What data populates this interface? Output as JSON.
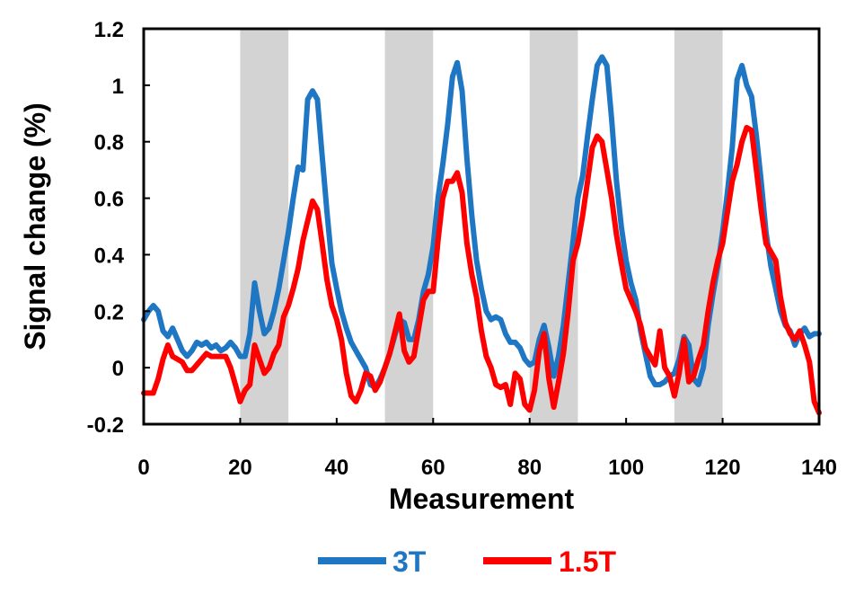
{
  "chart_data": {
    "type": "line",
    "title": "",
    "xlabel": "Measurement",
    "ylabel": "Signal change (%)",
    "xlim": [
      0,
      140
    ],
    "ylim": [
      -0.2,
      1.2
    ],
    "x_ticks": [
      0,
      20,
      40,
      60,
      80,
      100,
      120,
      140
    ],
    "y_ticks": [
      -0.2,
      0,
      0.2,
      0.4,
      0.6,
      0.8,
      1,
      1.2
    ],
    "y_tick_labels": [
      "-0.2",
      "0",
      "0.2",
      "0.4",
      "0.6",
      "0.8",
      "1",
      "1.2"
    ],
    "x_tick_labels": [
      "0",
      "20",
      "40",
      "60",
      "80",
      "100",
      "120",
      "140"
    ],
    "grid": false,
    "legend_position": "bottom-center",
    "shaded_blocks": [
      [
        20,
        30
      ],
      [
        50,
        60
      ],
      [
        80,
        90
      ],
      [
        110,
        120
      ]
    ],
    "shade_color": "#d3d3d3",
    "series": [
      {
        "name": "3T",
        "color": "#1f77c4",
        "points": [
          [
            0,
            0.17
          ],
          [
            1,
            0.2
          ],
          [
            2,
            0.22
          ],
          [
            3,
            0.2
          ],
          [
            4,
            0.13
          ],
          [
            5,
            0.11
          ],
          [
            6,
            0.14
          ],
          [
            7,
            0.1
          ],
          [
            8,
            0.06
          ],
          [
            9,
            0.04
          ],
          [
            10,
            0.06
          ],
          [
            11,
            0.09
          ],
          [
            12,
            0.08
          ],
          [
            13,
            0.09
          ],
          [
            14,
            0.07
          ],
          [
            15,
            0.08
          ],
          [
            16,
            0.06
          ],
          [
            17,
            0.07
          ],
          [
            18,
            0.09
          ],
          [
            19,
            0.07
          ],
          [
            20,
            0.04
          ],
          [
            21,
            0.04
          ],
          [
            22,
            0.12
          ],
          [
            23,
            0.3
          ],
          [
            24,
            0.2
          ],
          [
            25,
            0.12
          ],
          [
            26,
            0.14
          ],
          [
            27,
            0.2
          ],
          [
            28,
            0.28
          ],
          [
            29,
            0.38
          ],
          [
            30,
            0.48
          ],
          [
            31,
            0.6
          ],
          [
            32,
            0.71
          ],
          [
            33,
            0.7
          ],
          [
            34,
            0.95
          ],
          [
            35,
            0.98
          ],
          [
            36,
            0.95
          ],
          [
            37,
            0.75
          ],
          [
            38,
            0.55
          ],
          [
            39,
            0.37
          ],
          [
            40,
            0.28
          ],
          [
            41,
            0.2
          ],
          [
            42,
            0.14
          ],
          [
            43,
            0.09
          ],
          [
            44,
            0.06
          ],
          [
            45,
            0.03
          ],
          [
            46,
            0.0
          ],
          [
            47,
            -0.06
          ],
          [
            48,
            -0.07
          ],
          [
            49,
            -0.04
          ],
          [
            50,
            0.0
          ],
          [
            51,
            0.05
          ],
          [
            52,
            0.11
          ],
          [
            53,
            0.17
          ],
          [
            54,
            0.16
          ],
          [
            55,
            0.1
          ],
          [
            56,
            0.1
          ],
          [
            57,
            0.17
          ],
          [
            58,
            0.27
          ],
          [
            59,
            0.33
          ],
          [
            60,
            0.43
          ],
          [
            61,
            0.6
          ],
          [
            62,
            0.72
          ],
          [
            63,
            0.86
          ],
          [
            64,
            1.03
          ],
          [
            65,
            1.08
          ],
          [
            66,
            0.98
          ],
          [
            67,
            0.74
          ],
          [
            68,
            0.54
          ],
          [
            69,
            0.38
          ],
          [
            70,
            0.28
          ],
          [
            71,
            0.2
          ],
          [
            72,
            0.17
          ],
          [
            73,
            0.18
          ],
          [
            74,
            0.17
          ],
          [
            75,
            0.12
          ],
          [
            76,
            0.09
          ],
          [
            77,
            0.09
          ],
          [
            78,
            0.07
          ],
          [
            79,
            0.03
          ],
          [
            80,
            0.01
          ],
          [
            81,
            0.02
          ],
          [
            82,
            0.1
          ],
          [
            83,
            0.15
          ],
          [
            84,
            0.07
          ],
          [
            85,
            -0.03
          ],
          [
            86,
            0.04
          ],
          [
            87,
            0.15
          ],
          [
            88,
            0.3
          ],
          [
            89,
            0.45
          ],
          [
            90,
            0.6
          ],
          [
            91,
            0.68
          ],
          [
            92,
            0.82
          ],
          [
            93,
            0.95
          ],
          [
            94,
            1.07
          ],
          [
            95,
            1.1
          ],
          [
            96,
            1.07
          ],
          [
            97,
            0.88
          ],
          [
            98,
            0.66
          ],
          [
            99,
            0.5
          ],
          [
            100,
            0.38
          ],
          [
            101,
            0.3
          ],
          [
            102,
            0.24
          ],
          [
            103,
            0.13
          ],
          [
            104,
            0.05
          ],
          [
            105,
            -0.03
          ],
          [
            106,
            -0.06
          ],
          [
            107,
            -0.06
          ],
          [
            108,
            -0.05
          ],
          [
            109,
            -0.03
          ],
          [
            110,
            -0.02
          ],
          [
            111,
            0.03
          ],
          [
            112,
            0.11
          ],
          [
            113,
            0.08
          ],
          [
            114,
            -0.04
          ],
          [
            115,
            -0.06
          ],
          [
            116,
            0.0
          ],
          [
            117,
            0.15
          ],
          [
            118,
            0.26
          ],
          [
            119,
            0.36
          ],
          [
            120,
            0.48
          ],
          [
            121,
            0.62
          ],
          [
            122,
            0.78
          ],
          [
            123,
            1.02
          ],
          [
            124,
            1.07
          ],
          [
            125,
            1.0
          ],
          [
            126,
            0.96
          ],
          [
            127,
            0.82
          ],
          [
            128,
            0.66
          ],
          [
            129,
            0.48
          ],
          [
            130,
            0.36
          ],
          [
            131,
            0.28
          ],
          [
            132,
            0.2
          ],
          [
            133,
            0.15
          ],
          [
            134,
            0.13
          ],
          [
            135,
            0.08
          ],
          [
            136,
            0.12
          ],
          [
            137,
            0.14
          ],
          [
            138,
            0.11
          ],
          [
            139,
            0.12
          ],
          [
            140,
            0.12
          ]
        ]
      },
      {
        "name": "1.5T",
        "color": "#ff0000",
        "points": [
          [
            0,
            -0.09
          ],
          [
            1,
            -0.09
          ],
          [
            2,
            -0.09
          ],
          [
            3,
            -0.04
          ],
          [
            4,
            0.03
          ],
          [
            5,
            0.08
          ],
          [
            6,
            0.04
          ],
          [
            7,
            0.03
          ],
          [
            8,
            0.02
          ],
          [
            9,
            -0.01
          ],
          [
            10,
            -0.01
          ],
          [
            11,
            0.01
          ],
          [
            12,
            0.03
          ],
          [
            13,
            0.05
          ],
          [
            14,
            0.04
          ],
          [
            15,
            0.04
          ],
          [
            16,
            0.04
          ],
          [
            17,
            0.04
          ],
          [
            18,
            0.0
          ],
          [
            19,
            -0.06
          ],
          [
            20,
            -0.12
          ],
          [
            21,
            -0.08
          ],
          [
            22,
            -0.06
          ],
          [
            23,
            0.08
          ],
          [
            24,
            0.03
          ],
          [
            25,
            -0.02
          ],
          [
            26,
            0.0
          ],
          [
            27,
            0.05
          ],
          [
            28,
            0.08
          ],
          [
            29,
            0.18
          ],
          [
            30,
            0.22
          ],
          [
            31,
            0.28
          ],
          [
            32,
            0.35
          ],
          [
            33,
            0.45
          ],
          [
            34,
            0.52
          ],
          [
            35,
            0.59
          ],
          [
            36,
            0.56
          ],
          [
            37,
            0.44
          ],
          [
            38,
            0.31
          ],
          [
            39,
            0.22
          ],
          [
            40,
            0.17
          ],
          [
            41,
            0.1
          ],
          [
            42,
            -0.02
          ],
          [
            43,
            -0.1
          ],
          [
            44,
            -0.12
          ],
          [
            45,
            -0.08
          ],
          [
            46,
            -0.02
          ],
          [
            47,
            -0.03
          ],
          [
            48,
            -0.08
          ],
          [
            49,
            -0.05
          ],
          [
            50,
            0.0
          ],
          [
            51,
            0.05
          ],
          [
            52,
            0.12
          ],
          [
            53,
            0.19
          ],
          [
            54,
            0.06
          ],
          [
            55,
            0.02
          ],
          [
            56,
            0.04
          ],
          [
            57,
            0.14
          ],
          [
            58,
            0.24
          ],
          [
            59,
            0.27
          ],
          [
            60,
            0.27
          ],
          [
            61,
            0.45
          ],
          [
            62,
            0.6
          ],
          [
            63,
            0.66
          ],
          [
            64,
            0.66
          ],
          [
            65,
            0.69
          ],
          [
            66,
            0.62
          ],
          [
            67,
            0.44
          ],
          [
            68,
            0.33
          ],
          [
            69,
            0.25
          ],
          [
            70,
            0.13
          ],
          [
            71,
            0.04
          ],
          [
            72,
            0.0
          ],
          [
            73,
            -0.06
          ],
          [
            74,
            -0.07
          ],
          [
            75,
            -0.06
          ],
          [
            76,
            -0.13
          ],
          [
            77,
            -0.02
          ],
          [
            78,
            -0.04
          ],
          [
            79,
            -0.13
          ],
          [
            80,
            -0.15
          ],
          [
            81,
            -0.08
          ],
          [
            82,
            0.06
          ],
          [
            83,
            0.12
          ],
          [
            84,
            -0.04
          ],
          [
            85,
            -0.14
          ],
          [
            86,
            -0.05
          ],
          [
            87,
            0.05
          ],
          [
            88,
            0.2
          ],
          [
            89,
            0.38
          ],
          [
            90,
            0.44
          ],
          [
            91,
            0.54
          ],
          [
            92,
            0.66
          ],
          [
            93,
            0.78
          ],
          [
            94,
            0.82
          ],
          [
            95,
            0.8
          ],
          [
            96,
            0.7
          ],
          [
            97,
            0.6
          ],
          [
            98,
            0.47
          ],
          [
            99,
            0.37
          ],
          [
            100,
            0.28
          ],
          [
            101,
            0.24
          ],
          [
            102,
            0.2
          ],
          [
            103,
            0.15
          ],
          [
            104,
            0.07
          ],
          [
            105,
            0.04
          ],
          [
            106,
            0.01
          ],
          [
            107,
            0.13
          ],
          [
            108,
            0.0
          ],
          [
            109,
            -0.03
          ],
          [
            110,
            -0.1
          ],
          [
            111,
            -0.02
          ],
          [
            112,
            0.1
          ],
          [
            113,
            -0.05
          ],
          [
            114,
            -0.03
          ],
          [
            115,
            0.03
          ],
          [
            116,
            0.08
          ],
          [
            117,
            0.2
          ],
          [
            118,
            0.3
          ],
          [
            119,
            0.38
          ],
          [
            120,
            0.44
          ],
          [
            121,
            0.55
          ],
          [
            122,
            0.66
          ],
          [
            123,
            0.72
          ],
          [
            124,
            0.8
          ],
          [
            125,
            0.85
          ],
          [
            126,
            0.84
          ],
          [
            127,
            0.7
          ],
          [
            128,
            0.56
          ],
          [
            129,
            0.44
          ],
          [
            130,
            0.41
          ],
          [
            131,
            0.38
          ],
          [
            132,
            0.25
          ],
          [
            133,
            0.16
          ],
          [
            134,
            0.12
          ],
          [
            135,
            0.1
          ],
          [
            136,
            0.13
          ],
          [
            137,
            0.08
          ],
          [
            138,
            0.02
          ],
          [
            139,
            -0.12
          ],
          [
            140,
            -0.16
          ]
        ]
      }
    ]
  }
}
